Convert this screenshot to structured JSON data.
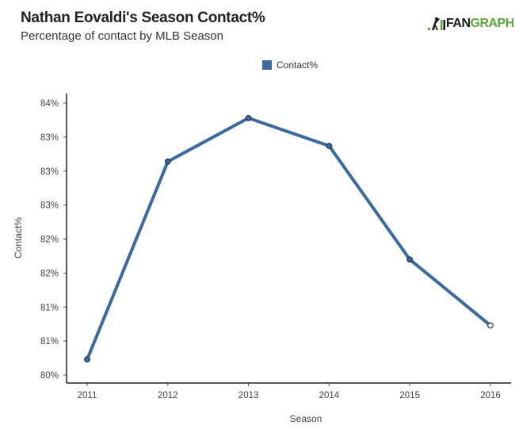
{
  "header": {
    "title": "Nathan Eovaldi's Season Contact%",
    "subtitle": "Percentage of contact by MLB Season"
  },
  "logo": {
    "icon": "batter-icon",
    "text_dark": "FAN",
    "text_green": "GRAPH"
  },
  "colors": {
    "series": "#3a6aa0",
    "marker_stroke": "#1f3550",
    "logo_green": "#5aa83b"
  },
  "chart_data": {
    "type": "line",
    "title": "Nathan Eovaldi's Season Contact%",
    "subtitle": "Percentage of contact by MLB Season",
    "xlabel": "Season",
    "ylabel": "Contact%",
    "x": [
      "2011",
      "2012",
      "2013",
      "2014",
      "2015",
      "2016"
    ],
    "series": [
      {
        "name": "Contact%",
        "values": [
          80.23,
          83.14,
          83.78,
          83.37,
          81.7,
          80.73
        ],
        "hollow_last_point": true
      }
    ],
    "ylim": [
      80.0,
      84.0
    ],
    "yticks": [
      80.0,
      80.5,
      81.0,
      81.5,
      82.0,
      82.5,
      83.0,
      83.5,
      84.0
    ],
    "ytick_labels": [
      "80%",
      "81%",
      "81%",
      "82%",
      "82%",
      "83%",
      "83%",
      "83%",
      "84%"
    ],
    "xtick_labels": [
      "2011",
      "2012",
      "2013",
      "2014",
      "2015",
      "2016"
    ],
    "grid": false,
    "legend": {
      "position": "top-center",
      "entries": [
        "Contact%"
      ]
    }
  }
}
